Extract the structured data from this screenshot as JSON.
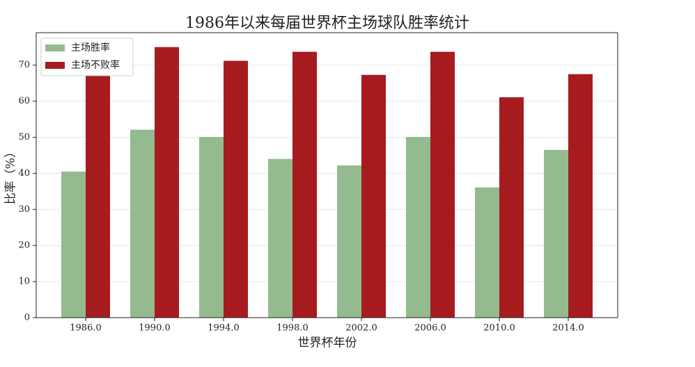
{
  "chart_data": {
    "type": "bar",
    "title": "1986年以来每届世界杯主场球队胜率统计",
    "x_label": "世界杯年份",
    "y_label": "比率（%）",
    "categories": [
      "1986.0",
      "1990.0",
      "1994.0",
      "1998.0",
      "2002.0",
      "2006.0",
      "2010.0",
      "2014.0"
    ],
    "series": [
      {
        "name": "主场胜率",
        "color": "#93bb8f",
        "values": [
          40.5,
          52.1,
          50.1,
          44.0,
          42.2,
          50.1,
          36.1,
          46.5
        ]
      },
      {
        "name": "主场不败率",
        "color": "#a61c1e",
        "values": [
          67.3,
          75.0,
          71.2,
          73.7,
          67.3,
          73.7,
          61.1,
          67.5
        ]
      }
    ],
    "ylim": [
      0,
      79
    ],
    "yticks": [
      0,
      10,
      20,
      30,
      40,
      50,
      60,
      70
    ],
    "grid": true,
    "legend": "upper-left"
  }
}
